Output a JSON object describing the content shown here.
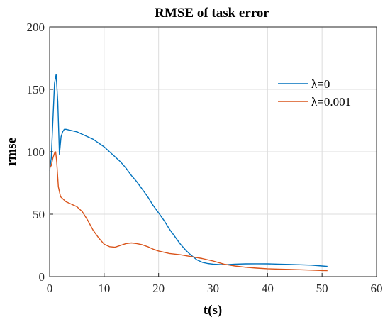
{
  "chart_data": {
    "type": "line",
    "title": "RMSE of task error",
    "xlabel": "t(s)",
    "ylabel": "rmse",
    "xlim": [
      0,
      60
    ],
    "ylim": [
      0,
      200
    ],
    "xticks": [
      "0",
      "10",
      "20",
      "30",
      "40",
      "50",
      "60"
    ],
    "yticks": [
      "0",
      "50",
      "100",
      "150",
      "200"
    ],
    "grid": true,
    "legend_position": "right",
    "series": [
      {
        "name": "λ=0",
        "color": "#0072BD",
        "x": [
          0,
          0.3,
          0.6,
          0.9,
          1.2,
          1.5,
          1.8,
          2.1,
          2.4,
          2.7,
          3.0,
          4,
          5,
          6,
          7,
          8,
          9,
          10,
          11,
          12,
          13,
          14,
          15,
          16,
          17,
          18,
          19,
          20,
          21,
          22,
          23,
          24,
          25,
          26,
          27,
          28,
          29,
          30,
          32,
          34,
          36,
          38,
          40,
          42,
          44,
          46,
          48,
          50,
          51
        ],
        "y": [
          85,
          95,
          125,
          155,
          162,
          140,
          98,
          112,
          116,
          118,
          118,
          117,
          116,
          114,
          112,
          110,
          107,
          104,
          100,
          96,
          92,
          87,
          81,
          76,
          70,
          64,
          57,
          51,
          45,
          38,
          32,
          26,
          21,
          17,
          13.5,
          11.5,
          10.5,
          10,
          9.5,
          10,
          10.2,
          10.3,
          10.2,
          10,
          9.8,
          9.5,
          9.2,
          8.5,
          8.2
        ]
      },
      {
        "name": "λ=0.001",
        "color": "#D95319",
        "x": [
          0,
          0.3,
          0.6,
          0.9,
          1.1,
          1.3,
          1.6,
          2,
          3,
          4,
          5,
          6,
          7,
          8,
          9,
          10,
          11,
          12,
          13,
          14,
          15,
          16,
          17,
          18,
          19,
          20,
          22,
          24,
          26,
          28,
          30,
          32,
          34,
          36,
          38,
          40,
          42,
          44,
          46,
          48,
          50,
          51
        ],
        "y": [
          87,
          89,
          95,
          99,
          100,
          92,
          72,
          64,
          60,
          58,
          56,
          52,
          45,
          37,
          31,
          26,
          24,
          23.5,
          25,
          26.5,
          27,
          26.5,
          25.5,
          24,
          22,
          20.5,
          18.5,
          17.5,
          16,
          14.5,
          12.5,
          10,
          8.5,
          7.5,
          6.8,
          6.3,
          6,
          5.8,
          5.5,
          5.2,
          4.9,
          4.8
        ]
      }
    ]
  }
}
